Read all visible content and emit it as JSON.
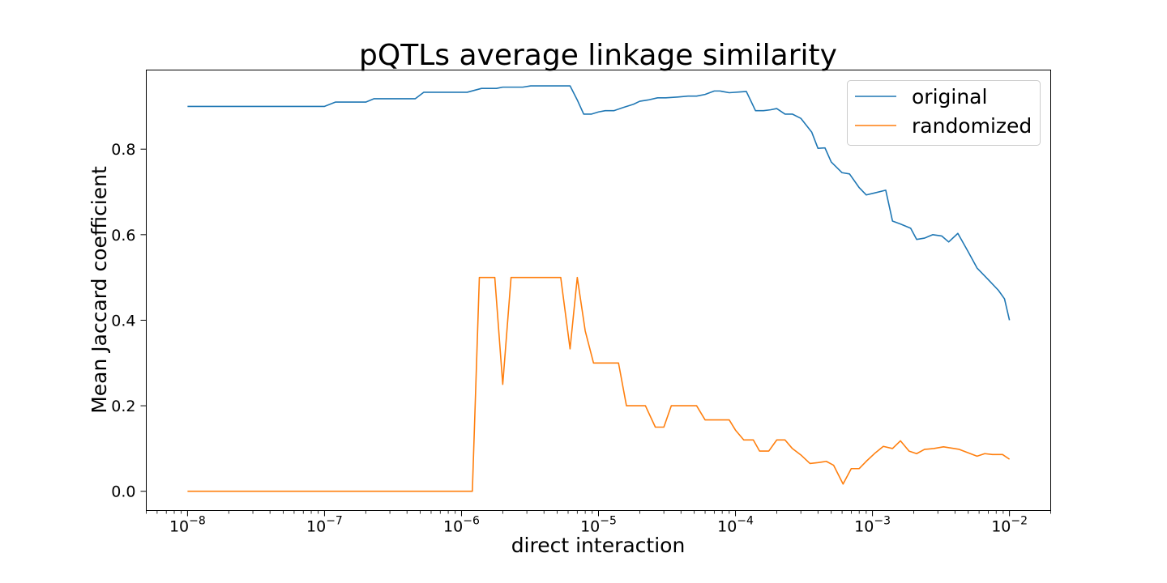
{
  "chart_data": {
    "type": "line",
    "title": "pQTLs average linkage similarity",
    "xlabel": "direct interaction",
    "ylabel": "Mean Jaccard coefficient",
    "x_scale": "log",
    "xlim": [
      5e-09,
      0.02
    ],
    "ylim": [
      -0.045,
      0.985
    ],
    "x_ticks": [
      1e-08,
      1e-07,
      1e-06,
      1e-05,
      0.0001,
      0.001,
      0.01
    ],
    "x_tick_labels": [
      {
        "base": "10",
        "exp": "−8"
      },
      {
        "base": "10",
        "exp": "−7"
      },
      {
        "base": "10",
        "exp": "−6"
      },
      {
        "base": "10",
        "exp": "−5"
      },
      {
        "base": "10",
        "exp": "−4"
      },
      {
        "base": "10",
        "exp": "−3"
      },
      {
        "base": "10",
        "exp": "−2"
      }
    ],
    "y_ticks": [
      0.0,
      0.2,
      0.4,
      0.6,
      0.8
    ],
    "y_tick_labels": [
      "0.0",
      "0.2",
      "0.4",
      "0.6",
      "0.8"
    ],
    "grid": false,
    "legend_position": "top-right",
    "series": [
      {
        "name": "original",
        "color": "#1f77b4",
        "points": [
          [
            1e-08,
            0.9
          ],
          [
            1.2e-08,
            0.9
          ],
          [
            1.6e-08,
            0.9
          ],
          [
            2e-08,
            0.9
          ],
          [
            2.5e-08,
            0.9
          ],
          [
            3e-08,
            0.9
          ],
          [
            4e-08,
            0.9
          ],
          [
            5e-08,
            0.9
          ],
          [
            6e-08,
            0.9
          ],
          [
            8e-08,
            0.9
          ],
          [
            1e-07,
            0.9
          ],
          [
            1.2e-07,
            0.91
          ],
          [
            1.6e-07,
            0.91
          ],
          [
            2e-07,
            0.91
          ],
          [
            2.3e-07,
            0.918
          ],
          [
            3e-07,
            0.918
          ],
          [
            4e-07,
            0.918
          ],
          [
            4.6e-07,
            0.918
          ],
          [
            5.3e-07,
            0.933
          ],
          [
            7e-07,
            0.933
          ],
          [
            9e-07,
            0.933
          ],
          [
            1.1e-06,
            0.933
          ],
          [
            1.4e-06,
            0.942
          ],
          [
            1.8e-06,
            0.942
          ],
          [
            2e-06,
            0.945
          ],
          [
            2.8e-06,
            0.945
          ],
          [
            3.2e-06,
            0.948
          ],
          [
            4.3e-06,
            0.948
          ],
          [
            5e-06,
            0.948
          ],
          [
            6.2e-06,
            0.948
          ],
          [
            7e-06,
            0.915
          ],
          [
            7.8e-06,
            0.882
          ],
          [
            8.9e-06,
            0.882
          ],
          [
            1e-05,
            0.887
          ],
          [
            1.12e-05,
            0.89
          ],
          [
            1.3e-05,
            0.89
          ],
          [
            1.5e-05,
            0.897
          ],
          [
            1.8e-05,
            0.905
          ],
          [
            2e-05,
            0.912
          ],
          [
            2.3e-05,
            0.915
          ],
          [
            2.7e-05,
            0.92
          ],
          [
            3.1e-05,
            0.92
          ],
          [
            3.8e-05,
            0.922
          ],
          [
            4.5e-05,
            0.924
          ],
          [
            5.2e-05,
            0.924
          ],
          [
            6e-05,
            0.928
          ],
          [
            7e-05,
            0.936
          ],
          [
            7.7e-05,
            0.936
          ],
          [
            9e-05,
            0.932
          ],
          [
            0.00011,
            0.934
          ],
          [
            0.00012,
            0.935
          ],
          [
            0.00014,
            0.89
          ],
          [
            0.00016,
            0.89
          ],
          [
            0.00018,
            0.892
          ],
          [
            0.0002,
            0.895
          ],
          [
            0.00023,
            0.882
          ],
          [
            0.00026,
            0.882
          ],
          [
            0.0003,
            0.872
          ],
          [
            0.00036,
            0.84
          ],
          [
            0.0004,
            0.802
          ],
          [
            0.00045,
            0.803
          ],
          [
            0.0005,
            0.77
          ],
          [
            0.0006,
            0.745
          ],
          [
            0.00068,
            0.742
          ],
          [
            0.0008,
            0.71
          ],
          [
            0.0009,
            0.693
          ],
          [
            0.00105,
            0.698
          ],
          [
            0.00125,
            0.704
          ],
          [
            0.0014,
            0.632
          ],
          [
            0.0016,
            0.625
          ],
          [
            0.0019,
            0.615
          ],
          [
            0.0021,
            0.589
          ],
          [
            0.0024,
            0.592
          ],
          [
            0.00275,
            0.6
          ],
          [
            0.0032,
            0.597
          ],
          [
            0.0036,
            0.583
          ],
          [
            0.0042,
            0.603
          ],
          [
            0.005,
            0.56
          ],
          [
            0.0058,
            0.522
          ],
          [
            0.007,
            0.495
          ],
          [
            0.0083,
            0.47
          ],
          [
            0.0092,
            0.45
          ],
          [
            0.01,
            0.4
          ]
        ]
      },
      {
        "name": "randomized",
        "color": "#ff7f0e",
        "points": [
          [
            1e-08,
            0.0
          ],
          [
            1e-07,
            0.0
          ],
          [
            1.05e-06,
            0.0
          ],
          [
            1.2e-06,
            0.0
          ],
          [
            1.35e-06,
            0.5
          ],
          [
            1.75e-06,
            0.5
          ],
          [
            2e-06,
            0.25
          ],
          [
            2.3e-06,
            0.5
          ],
          [
            5.3e-06,
            0.5
          ],
          [
            6.2e-06,
            0.333
          ],
          [
            7e-06,
            0.5
          ],
          [
            8e-06,
            0.375
          ],
          [
            9.2e-06,
            0.3
          ],
          [
            1e-05,
            0.3
          ],
          [
            1.4e-05,
            0.3
          ],
          [
            1.6e-05,
            0.2
          ],
          [
            1.85e-05,
            0.2
          ],
          [
            2.2e-05,
            0.2
          ],
          [
            2.6e-05,
            0.15
          ],
          [
            3e-05,
            0.15
          ],
          [
            3.4e-05,
            0.2
          ],
          [
            5.2e-05,
            0.2
          ],
          [
            6e-05,
            0.167
          ],
          [
            9e-05,
            0.167
          ],
          [
            0.0001,
            0.143
          ],
          [
            0.000115,
            0.12
          ],
          [
            0.000135,
            0.12
          ],
          [
            0.00015,
            0.094
          ],
          [
            0.000175,
            0.094
          ],
          [
            0.0002,
            0.12
          ],
          [
            0.00023,
            0.12
          ],
          [
            0.00026,
            0.1
          ],
          [
            0.0003,
            0.085
          ],
          [
            0.00035,
            0.065
          ],
          [
            0.0004,
            0.067
          ],
          [
            0.00046,
            0.07
          ],
          [
            0.00052,
            0.061
          ],
          [
            0.00061,
            0.017
          ],
          [
            0.0007,
            0.053
          ],
          [
            0.0008,
            0.053
          ],
          [
            0.0009,
            0.07
          ],
          [
            0.00105,
            0.09
          ],
          [
            0.0012,
            0.105
          ],
          [
            0.0014,
            0.1
          ],
          [
            0.0016,
            0.118
          ],
          [
            0.00185,
            0.094
          ],
          [
            0.0021,
            0.088
          ],
          [
            0.0024,
            0.098
          ],
          [
            0.0028,
            0.1
          ],
          [
            0.0033,
            0.104
          ],
          [
            0.0043,
            0.098
          ],
          [
            0.005,
            0.09
          ],
          [
            0.0058,
            0.082
          ],
          [
            0.0066,
            0.088
          ],
          [
            0.0075,
            0.086
          ],
          [
            0.0089,
            0.086
          ],
          [
            0.01,
            0.075
          ]
        ]
      }
    ]
  }
}
